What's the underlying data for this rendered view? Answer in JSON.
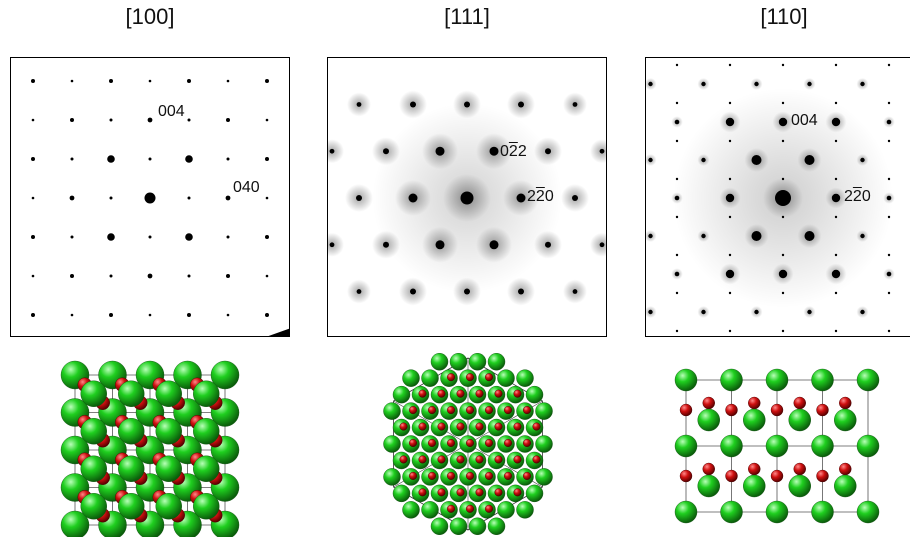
{
  "zones": [
    {
      "title": "[100]",
      "labels": [
        {
          "text": "004"
        },
        {
          "text": "040"
        }
      ]
    },
    {
      "title": "[111]",
      "labels": [
        {
          "pre": "0",
          "bar": "2",
          "post": "2"
        },
        {
          "pre": "2",
          "bar": "2",
          "post": "0"
        }
      ]
    },
    {
      "title": "[110]",
      "labels": [
        {
          "text": "004"
        },
        {
          "pre": "2",
          "bar": "2",
          "post": "0"
        }
      ]
    }
  ],
  "colors": {
    "cation": "#1fcf1f",
    "anion": "#d01010",
    "spot": "#000000",
    "frame": "#000000"
  }
}
